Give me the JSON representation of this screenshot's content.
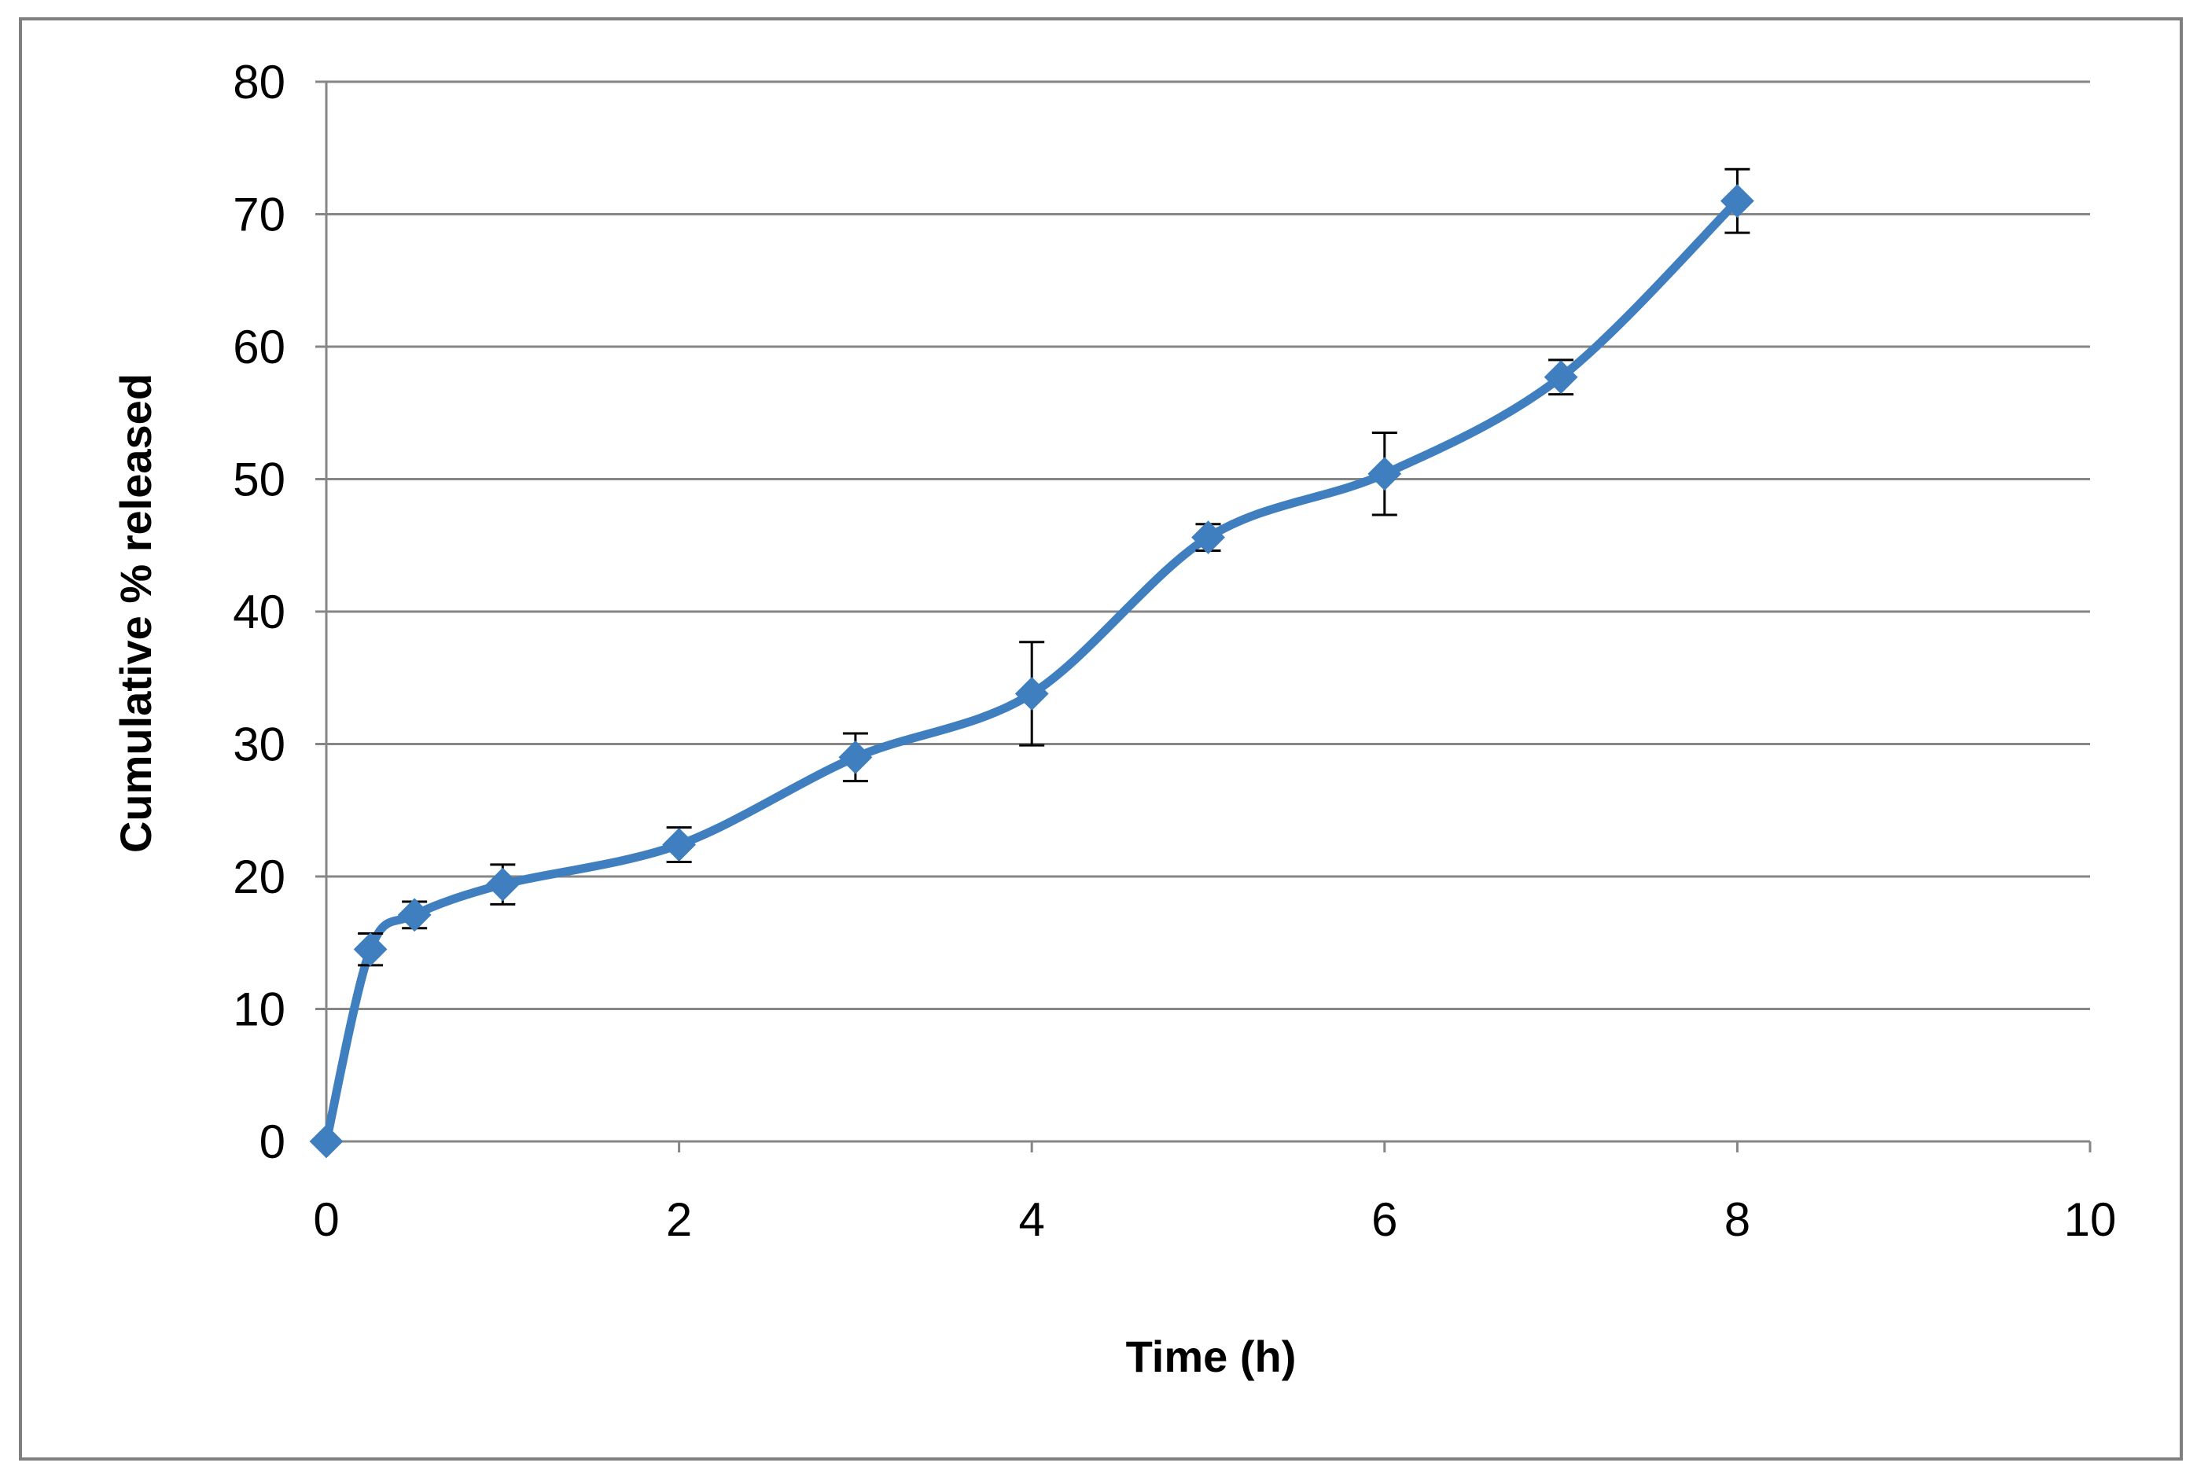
{
  "chart_data": {
    "type": "line",
    "title": "",
    "xlabel": "Time (h)",
    "ylabel": "Cumulative % released",
    "xlim": [
      0,
      10
    ],
    "ylim": [
      0,
      80
    ],
    "x_ticks": [
      "0",
      "2",
      "4",
      "6",
      "8",
      "10"
    ],
    "y_ticks": [
      "0",
      "10",
      "20",
      "30",
      "40",
      "50",
      "60",
      "70",
      "80"
    ],
    "grid": "horizontal",
    "legend": "none",
    "series": [
      {
        "color": "#3f7fbf",
        "marker": "diamond",
        "x": [
          0,
          0.25,
          0.5,
          1,
          2,
          3,
          4,
          5,
          6,
          7,
          8
        ],
        "y": [
          0,
          14.5,
          17.1,
          19.4,
          22.4,
          29.0,
          33.8,
          45.6,
          50.4,
          57.7,
          71.0
        ],
        "error": [
          0,
          1.2,
          1.0,
          1.5,
          1.3,
          1.8,
          3.9,
          1.0,
          3.1,
          1.3,
          2.4
        ]
      }
    ],
    "colors": {
      "gridline": "#868686",
      "axis": "#868686",
      "frame": "#7f7f7f",
      "errorbar": "#000000"
    }
  }
}
